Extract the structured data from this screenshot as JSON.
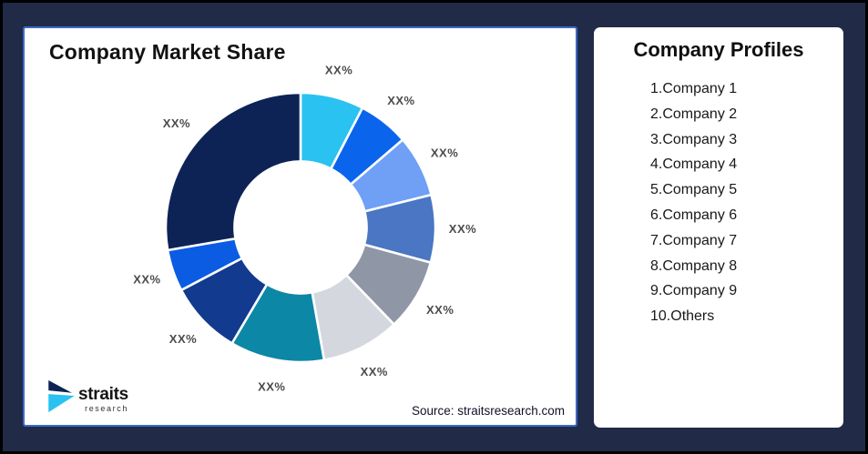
{
  "colors": {
    "frame": "#000000",
    "background": "#212B47",
    "card_border": "#3B69C8",
    "segment_label_text": "#4B4B4B"
  },
  "left_card": {
    "title": "Company Market Share",
    "source": "Source: straitsresearch.com"
  },
  "right_card": {
    "title": "Company Profiles",
    "items": [
      "1.Company 1",
      "2.Company 2",
      "3.Company 3",
      "4.Company 4",
      "5.Company 5",
      "6.Company 6",
      "7.Company 7",
      "8.Company 8",
      "9.Company 9",
      "10.Others"
    ]
  },
  "logo": {
    "brand": "straits",
    "sub": "research",
    "mark_navy": "#0E2355",
    "mark_cyan": "#29C2F1"
  },
  "chart_data": {
    "type": "pie",
    "subtype": "donut",
    "title": "Company Market Share",
    "start_angle_deg": 0,
    "clockwise": true,
    "inner_radius_ratio": 0.49,
    "legend": "none",
    "note": "All slice labels are masked placeholders reading XX%; values below are slice sizes in percent estimated from arc angles.",
    "segments": [
      {
        "label": "XX%",
        "value": 7.6,
        "color": "#29C2F1"
      },
      {
        "label": "XX%",
        "value": 6.1,
        "color": "#0B64EC"
      },
      {
        "label": "XX%",
        "value": 7.4,
        "color": "#6FA0F6"
      },
      {
        "label": "XX%",
        "value": 8.1,
        "color": "#4A76C3"
      },
      {
        "label": "XX%",
        "value": 8.6,
        "color": "#8F97A6"
      },
      {
        "label": "XX%",
        "value": 9.4,
        "color": "#D4D8DE"
      },
      {
        "label": "XX%",
        "value": 11.3,
        "color": "#0D87A6"
      },
      {
        "label": "XX%",
        "value": 8.8,
        "color": "#123A8E"
      },
      {
        "label": "XX%",
        "value": 5.0,
        "color": "#0B5CE3"
      },
      {
        "label": "XX%",
        "value": 27.7,
        "color": "#0E2355"
      }
    ]
  }
}
